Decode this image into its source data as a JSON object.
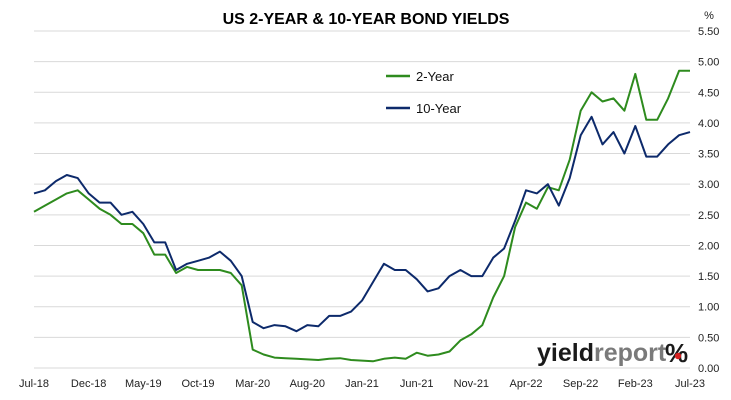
{
  "chart_data": {
    "type": "line",
    "title": "US 2-YEAR & 10-YEAR BOND YIELDS",
    "y_unit": "%",
    "ylim": [
      0,
      5.5
    ],
    "y_ticks": [
      "0.00",
      "0.50",
      "1.00",
      "1.50",
      "2.00",
      "2.50",
      "3.00",
      "3.50",
      "4.00",
      "4.50",
      "5.00",
      "5.50"
    ],
    "y_axis_side": "right",
    "grid": "horizontal",
    "x_ticks": [
      "Jul-18",
      "Dec-18",
      "May-19",
      "Oct-19",
      "Mar-20",
      "Aug-20",
      "Jan-21",
      "Jun-21",
      "Nov-21",
      "Apr-22",
      "Sep-22",
      "Feb-23",
      "Jul-23"
    ],
    "legend_placement": "upper-middle",
    "series": [
      {
        "name": "2-Year",
        "color": "#2e8b1e",
        "points": [
          [
            "Jul-18",
            2.55
          ],
          [
            "Aug-18",
            2.65
          ],
          [
            "Sep-18",
            2.75
          ],
          [
            "Oct-18",
            2.85
          ],
          [
            "Nov-18",
            2.9
          ],
          [
            "Dec-18",
            2.75
          ],
          [
            "Jan-19",
            2.6
          ],
          [
            "Feb-19",
            2.5
          ],
          [
            "Mar-19",
            2.35
          ],
          [
            "Apr-19",
            2.35
          ],
          [
            "May-19",
            2.2
          ],
          [
            "Jun-19",
            1.85
          ],
          [
            "Jul-19",
            1.85
          ],
          [
            "Aug-19",
            1.55
          ],
          [
            "Sep-19",
            1.65
          ],
          [
            "Oct-19",
            1.6
          ],
          [
            "Nov-19",
            1.6
          ],
          [
            "Dec-19",
            1.6
          ],
          [
            "Jan-20",
            1.55
          ],
          [
            "Feb-20",
            1.35
          ],
          [
            "Mar-20",
            0.3
          ],
          [
            "Apr-20",
            0.22
          ],
          [
            "May-20",
            0.17
          ],
          [
            "Jun-20",
            0.16
          ],
          [
            "Jul-20",
            0.15
          ],
          [
            "Aug-20",
            0.14
          ],
          [
            "Sep-20",
            0.13
          ],
          [
            "Oct-20",
            0.15
          ],
          [
            "Nov-20",
            0.16
          ],
          [
            "Dec-20",
            0.13
          ],
          [
            "Jan-21",
            0.12
          ],
          [
            "Feb-21",
            0.11
          ],
          [
            "Mar-21",
            0.15
          ],
          [
            "Apr-21",
            0.17
          ],
          [
            "May-21",
            0.15
          ],
          [
            "Jun-21",
            0.25
          ],
          [
            "Jul-21",
            0.2
          ],
          [
            "Aug-21",
            0.22
          ],
          [
            "Sep-21",
            0.27
          ],
          [
            "Oct-21",
            0.45
          ],
          [
            "Nov-21",
            0.55
          ],
          [
            "Dec-21",
            0.7
          ],
          [
            "Jan-22",
            1.15
          ],
          [
            "Feb-22",
            1.5
          ],
          [
            "Mar-22",
            2.3
          ],
          [
            "Apr-22",
            2.7
          ],
          [
            "May-22",
            2.6
          ],
          [
            "Jun-22",
            2.95
          ],
          [
            "Jul-22",
            2.9
          ],
          [
            "Aug-22",
            3.4
          ],
          [
            "Sep-22",
            4.2
          ],
          [
            "Oct-22",
            4.5
          ],
          [
            "Nov-22",
            4.35
          ],
          [
            "Dec-22",
            4.4
          ],
          [
            "Jan-23",
            4.2
          ],
          [
            "Feb-23",
            4.8
          ],
          [
            "Mar-23",
            4.05
          ],
          [
            "Apr-23",
            4.05
          ],
          [
            "May-23",
            4.4
          ],
          [
            "Jun-23",
            4.85
          ],
          [
            "Jul-23",
            4.85
          ]
        ]
      },
      {
        "name": "10-Year",
        "color": "#0d2a6b",
        "points": [
          [
            "Jul-18",
            2.85
          ],
          [
            "Aug-18",
            2.9
          ],
          [
            "Sep-18",
            3.05
          ],
          [
            "Oct-18",
            3.15
          ],
          [
            "Nov-18",
            3.1
          ],
          [
            "Dec-18",
            2.85
          ],
          [
            "Jan-19",
            2.7
          ],
          [
            "Feb-19",
            2.7
          ],
          [
            "Mar-19",
            2.5
          ],
          [
            "Apr-19",
            2.55
          ],
          [
            "May-19",
            2.35
          ],
          [
            "Jun-19",
            2.05
          ],
          [
            "Jul-19",
            2.05
          ],
          [
            "Aug-19",
            1.6
          ],
          [
            "Sep-19",
            1.7
          ],
          [
            "Oct-19",
            1.75
          ],
          [
            "Nov-19",
            1.8
          ],
          [
            "Dec-19",
            1.9
          ],
          [
            "Jan-20",
            1.75
          ],
          [
            "Feb-20",
            1.5
          ],
          [
            "Mar-20",
            0.75
          ],
          [
            "Apr-20",
            0.65
          ],
          [
            "May-20",
            0.7
          ],
          [
            "Jun-20",
            0.68
          ],
          [
            "Jul-20",
            0.6
          ],
          [
            "Aug-20",
            0.7
          ],
          [
            "Sep-20",
            0.68
          ],
          [
            "Oct-20",
            0.85
          ],
          [
            "Nov-20",
            0.85
          ],
          [
            "Dec-20",
            0.92
          ],
          [
            "Jan-21",
            1.1
          ],
          [
            "Feb-21",
            1.4
          ],
          [
            "Mar-21",
            1.7
          ],
          [
            "Apr-21",
            1.6
          ],
          [
            "May-21",
            1.6
          ],
          [
            "Jun-21",
            1.45
          ],
          [
            "Jul-21",
            1.25
          ],
          [
            "Aug-21",
            1.3
          ],
          [
            "Sep-21",
            1.5
          ],
          [
            "Oct-21",
            1.6
          ],
          [
            "Nov-21",
            1.5
          ],
          [
            "Dec-21",
            1.5
          ],
          [
            "Jan-22",
            1.8
          ],
          [
            "Feb-22",
            1.95
          ],
          [
            "Mar-22",
            2.4
          ],
          [
            "Apr-22",
            2.9
          ],
          [
            "May-22",
            2.85
          ],
          [
            "Jun-22",
            3.0
          ],
          [
            "Jul-22",
            2.65
          ],
          [
            "Aug-22",
            3.1
          ],
          [
            "Sep-22",
            3.8
          ],
          [
            "Oct-22",
            4.1
          ],
          [
            "Nov-22",
            3.65
          ],
          [
            "Dec-22",
            3.85
          ],
          [
            "Jan-23",
            3.5
          ],
          [
            "Feb-23",
            3.95
          ],
          [
            "Mar-23",
            3.45
          ],
          [
            "Apr-23",
            3.45
          ],
          [
            "May-23",
            3.65
          ],
          [
            "Jun-23",
            3.8
          ],
          [
            "Jul-23",
            3.85
          ]
        ]
      }
    ]
  },
  "logo": {
    "main": "yield",
    "accent": "report",
    "pct": "%"
  }
}
